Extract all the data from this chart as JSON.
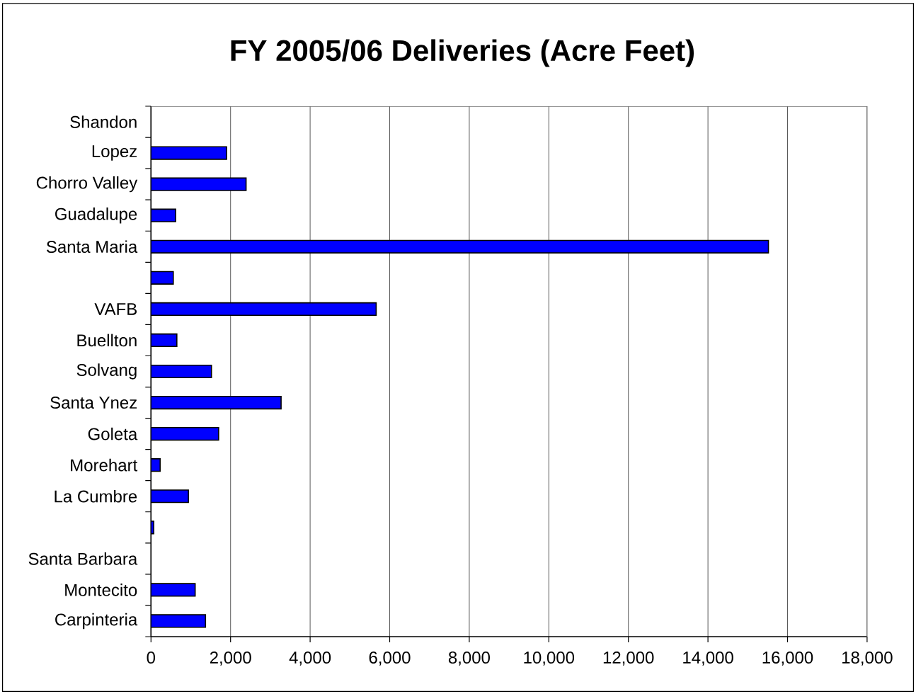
{
  "chart_data": {
    "type": "bar",
    "orientation": "horizontal",
    "title": "FY 2005/06 Deliveries (Acre Feet)",
    "categories": [
      "Shandon",
      "Lopez",
      "Chorro Valley",
      "Guadalupe",
      "Santa Maria",
      null,
      "VAFB",
      "Buellton",
      "Solvang",
      "Santa Ynez",
      "Goleta",
      "Morehart",
      "La Cumbre",
      null,
      "Santa Barbara",
      "Montecito",
      "Carpinteria"
    ],
    "values": [
      null,
      1900,
      2390,
      620,
      15520,
      560,
      5660,
      650,
      1520,
      3270,
      1700,
      230,
      940,
      70,
      null,
      1110,
      1370
    ],
    "color": "#0000ff",
    "xlim": [
      0,
      18000
    ],
    "xticks": [
      0,
      {
        "value": 2000,
        "label": "2,000"
      },
      {
        "value": 4000,
        "label": "4,000"
      },
      {
        "value": 6000,
        "label": "6,000"
      },
      {
        "value": 8000,
        "label": "8,000"
      },
      {
        "value": 10000,
        "label": "10,000"
      },
      {
        "value": 12000,
        "label": "12,000"
      },
      {
        "value": 14000,
        "label": "14,000"
      },
      {
        "value": 16000,
        "label": "16,000"
      },
      {
        "value": 18000,
        "label": "18,000"
      }
    ],
    "grid": "x"
  }
}
